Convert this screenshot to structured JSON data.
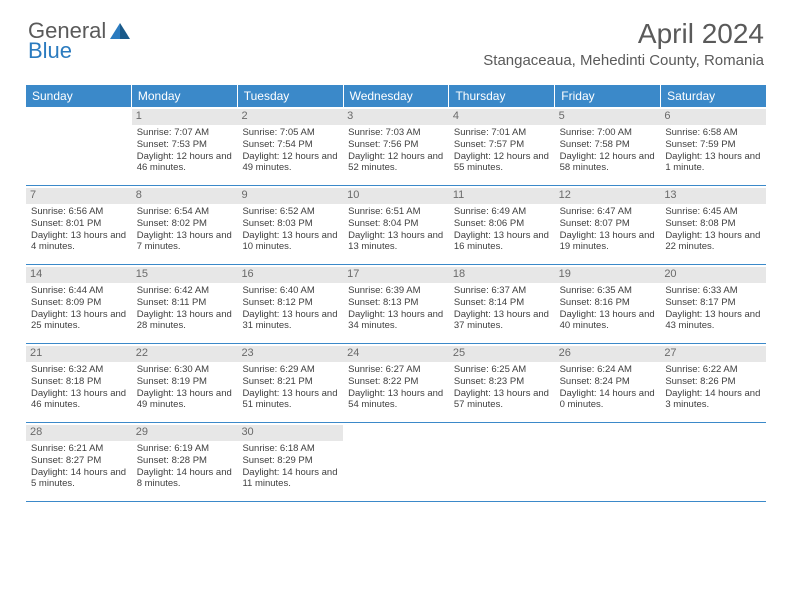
{
  "logo": {
    "text1": "General",
    "text2": "Blue"
  },
  "title": "April 2024",
  "location": "Stangaceaua, Mehedinti County, Romania",
  "colors": {
    "header_bg": "#3b89c9",
    "header_text": "#ffffff",
    "day_bar_bg": "#e7e7e7",
    "divider": "#3b89c9",
    "body_text": "#404040",
    "title_text": "#5a5a5a",
    "logo_blue": "#2b7bbf"
  },
  "day_headers": [
    "Sunday",
    "Monday",
    "Tuesday",
    "Wednesday",
    "Thursday",
    "Friday",
    "Saturday"
  ],
  "weeks": [
    [
      {
        "n": "",
        "sunrise": "",
        "sunset": "",
        "daylight": ""
      },
      {
        "n": "1",
        "sunrise": "Sunrise: 7:07 AM",
        "sunset": "Sunset: 7:53 PM",
        "daylight": "Daylight: 12 hours and 46 minutes."
      },
      {
        "n": "2",
        "sunrise": "Sunrise: 7:05 AM",
        "sunset": "Sunset: 7:54 PM",
        "daylight": "Daylight: 12 hours and 49 minutes."
      },
      {
        "n": "3",
        "sunrise": "Sunrise: 7:03 AM",
        "sunset": "Sunset: 7:56 PM",
        "daylight": "Daylight: 12 hours and 52 minutes."
      },
      {
        "n": "4",
        "sunrise": "Sunrise: 7:01 AM",
        "sunset": "Sunset: 7:57 PM",
        "daylight": "Daylight: 12 hours and 55 minutes."
      },
      {
        "n": "5",
        "sunrise": "Sunrise: 7:00 AM",
        "sunset": "Sunset: 7:58 PM",
        "daylight": "Daylight: 12 hours and 58 minutes."
      },
      {
        "n": "6",
        "sunrise": "Sunrise: 6:58 AM",
        "sunset": "Sunset: 7:59 PM",
        "daylight": "Daylight: 13 hours and 1 minute."
      }
    ],
    [
      {
        "n": "7",
        "sunrise": "Sunrise: 6:56 AM",
        "sunset": "Sunset: 8:01 PM",
        "daylight": "Daylight: 13 hours and 4 minutes."
      },
      {
        "n": "8",
        "sunrise": "Sunrise: 6:54 AM",
        "sunset": "Sunset: 8:02 PM",
        "daylight": "Daylight: 13 hours and 7 minutes."
      },
      {
        "n": "9",
        "sunrise": "Sunrise: 6:52 AM",
        "sunset": "Sunset: 8:03 PM",
        "daylight": "Daylight: 13 hours and 10 minutes."
      },
      {
        "n": "10",
        "sunrise": "Sunrise: 6:51 AM",
        "sunset": "Sunset: 8:04 PM",
        "daylight": "Daylight: 13 hours and 13 minutes."
      },
      {
        "n": "11",
        "sunrise": "Sunrise: 6:49 AM",
        "sunset": "Sunset: 8:06 PM",
        "daylight": "Daylight: 13 hours and 16 minutes."
      },
      {
        "n": "12",
        "sunrise": "Sunrise: 6:47 AM",
        "sunset": "Sunset: 8:07 PM",
        "daylight": "Daylight: 13 hours and 19 minutes."
      },
      {
        "n": "13",
        "sunrise": "Sunrise: 6:45 AM",
        "sunset": "Sunset: 8:08 PM",
        "daylight": "Daylight: 13 hours and 22 minutes."
      }
    ],
    [
      {
        "n": "14",
        "sunrise": "Sunrise: 6:44 AM",
        "sunset": "Sunset: 8:09 PM",
        "daylight": "Daylight: 13 hours and 25 minutes."
      },
      {
        "n": "15",
        "sunrise": "Sunrise: 6:42 AM",
        "sunset": "Sunset: 8:11 PM",
        "daylight": "Daylight: 13 hours and 28 minutes."
      },
      {
        "n": "16",
        "sunrise": "Sunrise: 6:40 AM",
        "sunset": "Sunset: 8:12 PM",
        "daylight": "Daylight: 13 hours and 31 minutes."
      },
      {
        "n": "17",
        "sunrise": "Sunrise: 6:39 AM",
        "sunset": "Sunset: 8:13 PM",
        "daylight": "Daylight: 13 hours and 34 minutes."
      },
      {
        "n": "18",
        "sunrise": "Sunrise: 6:37 AM",
        "sunset": "Sunset: 8:14 PM",
        "daylight": "Daylight: 13 hours and 37 minutes."
      },
      {
        "n": "19",
        "sunrise": "Sunrise: 6:35 AM",
        "sunset": "Sunset: 8:16 PM",
        "daylight": "Daylight: 13 hours and 40 minutes."
      },
      {
        "n": "20",
        "sunrise": "Sunrise: 6:33 AM",
        "sunset": "Sunset: 8:17 PM",
        "daylight": "Daylight: 13 hours and 43 minutes."
      }
    ],
    [
      {
        "n": "21",
        "sunrise": "Sunrise: 6:32 AM",
        "sunset": "Sunset: 8:18 PM",
        "daylight": "Daylight: 13 hours and 46 minutes."
      },
      {
        "n": "22",
        "sunrise": "Sunrise: 6:30 AM",
        "sunset": "Sunset: 8:19 PM",
        "daylight": "Daylight: 13 hours and 49 minutes."
      },
      {
        "n": "23",
        "sunrise": "Sunrise: 6:29 AM",
        "sunset": "Sunset: 8:21 PM",
        "daylight": "Daylight: 13 hours and 51 minutes."
      },
      {
        "n": "24",
        "sunrise": "Sunrise: 6:27 AM",
        "sunset": "Sunset: 8:22 PM",
        "daylight": "Daylight: 13 hours and 54 minutes."
      },
      {
        "n": "25",
        "sunrise": "Sunrise: 6:25 AM",
        "sunset": "Sunset: 8:23 PM",
        "daylight": "Daylight: 13 hours and 57 minutes."
      },
      {
        "n": "26",
        "sunrise": "Sunrise: 6:24 AM",
        "sunset": "Sunset: 8:24 PM",
        "daylight": "Daylight: 14 hours and 0 minutes."
      },
      {
        "n": "27",
        "sunrise": "Sunrise: 6:22 AM",
        "sunset": "Sunset: 8:26 PM",
        "daylight": "Daylight: 14 hours and 3 minutes."
      }
    ],
    [
      {
        "n": "28",
        "sunrise": "Sunrise: 6:21 AM",
        "sunset": "Sunset: 8:27 PM",
        "daylight": "Daylight: 14 hours and 5 minutes."
      },
      {
        "n": "29",
        "sunrise": "Sunrise: 6:19 AM",
        "sunset": "Sunset: 8:28 PM",
        "daylight": "Daylight: 14 hours and 8 minutes."
      },
      {
        "n": "30",
        "sunrise": "Sunrise: 6:18 AM",
        "sunset": "Sunset: 8:29 PM",
        "daylight": "Daylight: 14 hours and 11 minutes."
      },
      {
        "n": "",
        "sunrise": "",
        "sunset": "",
        "daylight": ""
      },
      {
        "n": "",
        "sunrise": "",
        "sunset": "",
        "daylight": ""
      },
      {
        "n": "",
        "sunrise": "",
        "sunset": "",
        "daylight": ""
      },
      {
        "n": "",
        "sunrise": "",
        "sunset": "",
        "daylight": ""
      }
    ]
  ]
}
